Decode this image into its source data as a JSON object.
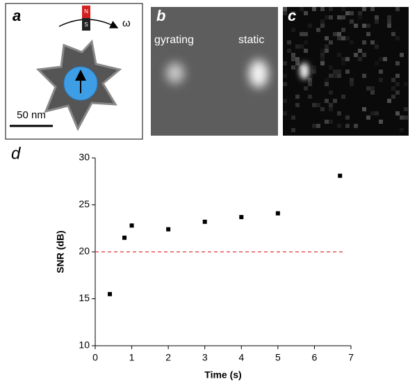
{
  "panels": {
    "a": {
      "label": "a",
      "scale_bar": "50 nm",
      "magnet_n": "N",
      "magnet_s": "S",
      "omega": "ω"
    },
    "b": {
      "label": "b",
      "left": "gyrating",
      "right": "static"
    },
    "c": {
      "label": "c"
    },
    "d": {
      "label": "d"
    }
  },
  "chart_data": {
    "type": "scatter",
    "x": [
      0.4,
      0.8,
      1.0,
      2,
      3,
      4,
      5,
      6.7
    ],
    "values": [
      15.5,
      21.5,
      22.8,
      22.4,
      23.2,
      23.7,
      24.1,
      28.1
    ],
    "color": "#000000",
    "xlabel": "Time (s)",
    "ylabel": "SNR (dB)",
    "xlim": [
      0,
      7
    ],
    "xticks": [
      0,
      1,
      2,
      3,
      4,
      5,
      6,
      7
    ],
    "ylim": [
      10,
      30
    ],
    "yticks": [
      10,
      15,
      20,
      25,
      30
    ],
    "reference_line": {
      "value": 20,
      "color": "#e03030"
    },
    "grid": false
  }
}
